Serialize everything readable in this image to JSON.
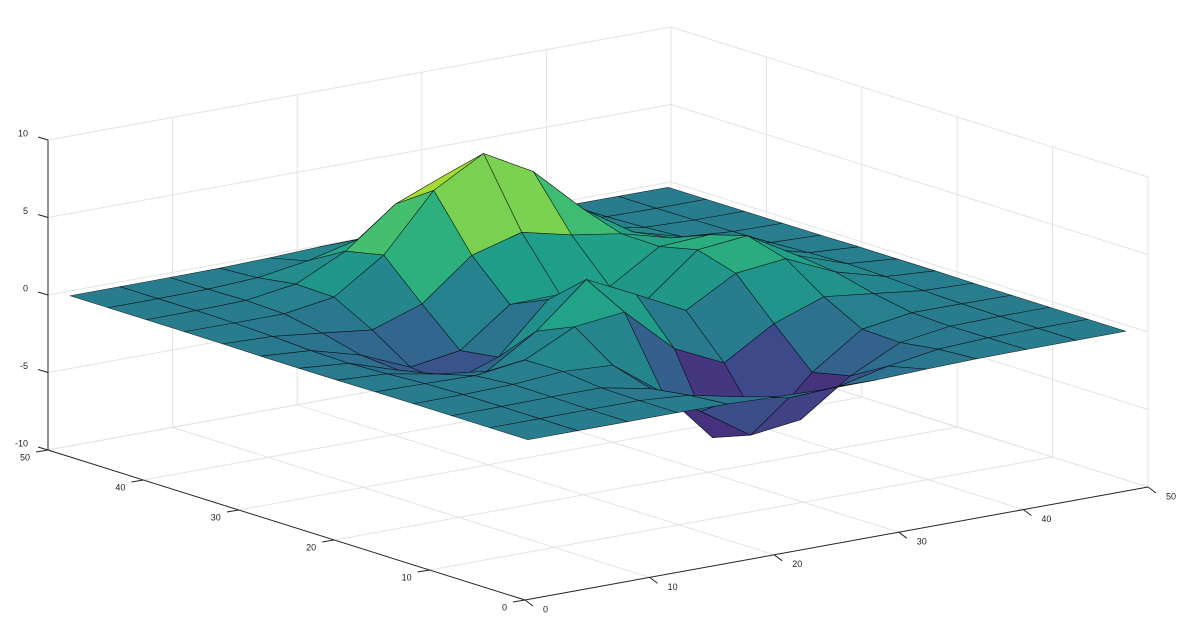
{
  "chart_data": {
    "type": "surface",
    "x": [
      1,
      5,
      9,
      13,
      17,
      21,
      25,
      29,
      33,
      37,
      41,
      45,
      49
    ],
    "y": [
      1,
      5,
      9,
      13,
      17,
      21,
      25,
      29,
      33,
      37,
      41,
      45,
      49
    ],
    "z": [
      [
        0.0,
        0.0,
        0.0,
        0.0,
        -0.03,
        -0.14,
        -0.24,
        -0.22,
        -0.11,
        -0.03,
        -0.01,
        0.0,
        0.0
      ],
      [
        0.0,
        0.0,
        0.01,
        0.0,
        -0.23,
        -0.92,
        -1.57,
        -1.41,
        -0.69,
        -0.18,
        -0.03,
        0.0,
        0.0
      ],
      [
        0.0,
        0.01,
        0.05,
        0.05,
        -0.59,
        -2.63,
        -4.75,
        -4.34,
        -2.1,
        -0.53,
        -0.06,
        0.0,
        0.0
      ],
      [
        0.0,
        0.01,
        0.08,
        0.33,
        0.15,
        -2.19,
        -5.68,
        -5.76,
        -2.64,
        -0.44,
        0.04,
        0.03,
        0.0
      ],
      [
        -0.01,
        -0.06,
        -0.13,
        0.3,
        1.86,
        2.22,
        -0.72,
        -2.22,
        -0.27,
        0.88,
        0.5,
        0.11,
        0.01
      ],
      [
        -0.03,
        -0.2,
        -0.8,
        -1.21,
        0.8,
        3.55,
        2.0,
        0.39,
        2.2,
        2.56,
        1.12,
        0.24,
        0.03
      ],
      [
        -0.04,
        -0.3,
        -1.33,
        -2.77,
        -1.65,
        1.48,
        0.98,
        0.37,
        2.94,
        3.27,
        1.41,
        0.3,
        0.03
      ],
      [
        -0.03,
        -0.25,
        -1.12,
        -2.49,
        -2.0,
        0.39,
        0.46,
        0.38,
        2.38,
        2.56,
        1.09,
        0.23,
        0.03
      ],
      [
        -0.01,
        -0.11,
        -0.48,
        -0.86,
        0.23,
        2.79,
        3.69,
        2.94,
        2.43,
        1.58,
        0.58,
        0.11,
        0.01
      ],
      [
        0.0,
        -0.02,
        -0.01,
        0.48,
        2.61,
        6.2,
        8.0,
        6.25,
        3.25,
        1.19,
        0.29,
        0.05,
        0.0
      ],
      [
        0.0,
        0.01,
        0.08,
        0.55,
        2.09,
        4.55,
        5.85,
        4.56,
        2.21,
        0.68,
        0.13,
        0.02,
        0.0
      ],
      [
        0.0,
        0.0,
        0.03,
        0.19,
        0.69,
        1.47,
        1.88,
        1.47,
        0.7,
        0.2,
        0.04,
        0.0,
        0.0
      ],
      [
        0.0,
        0.0,
        0.01,
        0.03,
        0.11,
        0.23,
        0.3,
        0.23,
        0.11,
        0.03,
        0.01,
        0.0,
        0.0
      ]
    ],
    "xlim": [
      0,
      50
    ],
    "ylim": [
      0,
      50
    ],
    "zlim": [
      -10,
      10
    ],
    "xticks": [
      0,
      10,
      20,
      30,
      40,
      50
    ],
    "yticks": [
      0,
      10,
      20,
      30,
      40,
      50
    ],
    "zticks": [
      -10,
      -5,
      0,
      5,
      10
    ],
    "grid": true,
    "colormap": "viridis",
    "edgecolor": "#000000"
  }
}
